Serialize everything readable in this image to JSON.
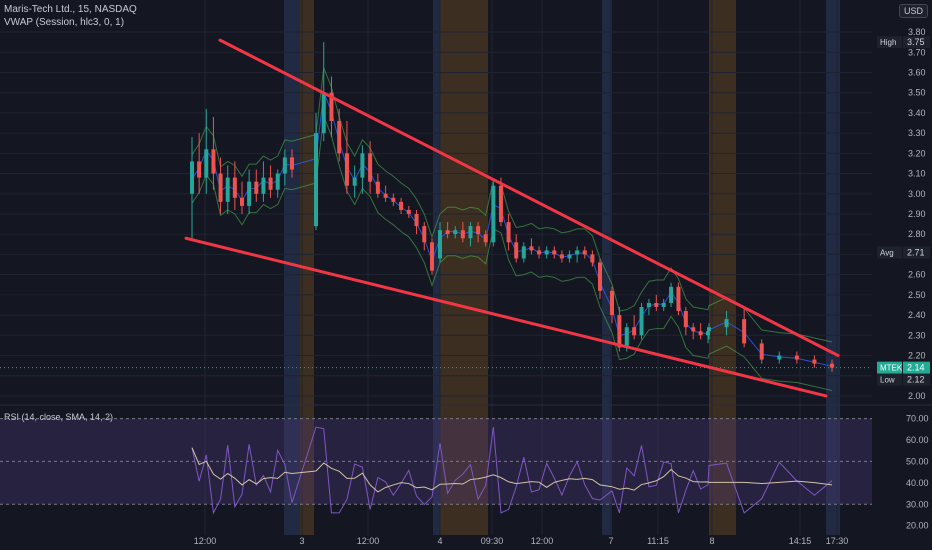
{
  "header": {
    "symbol": "Maris-Tech Ltd., 15, NASDAQ",
    "vwap_legend": "VWAP (Session, hlc3, 0, 1)",
    "rsi_legend": "RSI (14, close, SMA, 14, 2)",
    "currency": "USD"
  },
  "colors": {
    "background": "#141722",
    "up": "#26a69a",
    "down": "#ef5350",
    "trendline": "#f23645",
    "rsi_line": "#7e57c2",
    "rsi_ma": "#d1c4a8",
    "rsi_band": "#5b3f8c",
    "vwap": "#2962ff",
    "vwap_band": "#4caf50",
    "session_pre": "#2a3a5c",
    "session_post": "#5c4420"
  },
  "chart_data": {
    "type": "candlestick",
    "price_axis": {
      "ylim": [
        1.98,
        3.82
      ],
      "ticks": [
        "3.80",
        "3.70",
        "3.60",
        "3.50",
        "3.40",
        "3.30",
        "3.20",
        "3.10",
        "3.00",
        "2.90",
        "2.80",
        "2.70",
        "2.60",
        "2.50",
        "2.40",
        "2.30",
        "2.20",
        "2.10",
        "2.00"
      ]
    },
    "time_axis": {
      "ticks": [
        "12:00",
        "3",
        "12:00",
        "4",
        "09:30",
        "12:00",
        "7",
        "11:15",
        "8",
        "14:15",
        "17:30"
      ]
    },
    "price_labels": {
      "high": {
        "label": "High",
        "value": "3.75"
      },
      "avg": {
        "label": "Avg",
        "value": "2.71"
      },
      "last": {
        "label": "MTEK",
        "value": "2.14"
      },
      "low": {
        "label": "Low",
        "value": "2.12"
      }
    },
    "rsi_axis": {
      "ylim": [
        18,
        74
      ],
      "ticks": [
        "70.00",
        "60.00",
        "50.00",
        "40.00",
        "30.00",
        "20.00"
      ],
      "upper_band": 70,
      "lower_band": 30,
      "middle": 50
    },
    "candles": [
      [
        3.0,
        3.28,
        2.78,
        3.16
      ],
      [
        3.16,
        3.3,
        3.0,
        3.08
      ],
      [
        3.08,
        3.42,
        3.0,
        3.22
      ],
      [
        3.22,
        3.38,
        3.02,
        3.1
      ],
      [
        3.1,
        3.18,
        2.9,
        2.96
      ],
      [
        2.96,
        3.14,
        2.9,
        3.08
      ],
      [
        3.08,
        3.16,
        2.92,
        2.98
      ],
      [
        2.98,
        3.06,
        2.9,
        2.94
      ],
      [
        2.94,
        3.12,
        2.9,
        3.06
      ],
      [
        3.06,
        3.12,
        2.96,
        3.0
      ],
      [
        3.0,
        3.16,
        2.96,
        3.08
      ],
      [
        3.08,
        3.14,
        2.98,
        3.02
      ],
      [
        3.02,
        3.12,
        2.98,
        3.1
      ],
      [
        3.1,
        3.22,
        3.04,
        3.18
      ],
      [
        3.18,
        3.22,
        3.08,
        3.12
      ],
      [
        2.84,
        3.4,
        2.82,
        3.3
      ],
      [
        3.3,
        3.75,
        3.26,
        3.5
      ],
      [
        3.5,
        3.58,
        3.28,
        3.36
      ],
      [
        3.36,
        3.42,
        3.16,
        3.2
      ],
      [
        3.2,
        3.36,
        3.0,
        3.04
      ],
      [
        3.04,
        3.14,
        2.98,
        3.08
      ],
      [
        3.08,
        3.24,
        3.0,
        3.2
      ],
      [
        3.2,
        3.26,
        3.0,
        3.06
      ],
      [
        3.06,
        3.1,
        2.98,
        3.0
      ],
      [
        3.0,
        3.04,
        2.96,
        2.98
      ],
      [
        2.98,
        3.0,
        2.94,
        2.96
      ],
      [
        2.96,
        2.98,
        2.9,
        2.92
      ],
      [
        2.92,
        2.94,
        2.88,
        2.9
      ],
      [
        2.9,
        2.92,
        2.8,
        2.84
      ],
      [
        2.84,
        2.86,
        2.72,
        2.76
      ],
      [
        2.76,
        2.78,
        2.6,
        2.62
      ],
      [
        2.68,
        2.86,
        2.66,
        2.82
      ],
      [
        2.82,
        2.86,
        2.78,
        2.8
      ],
      [
        2.8,
        2.84,
        2.78,
        2.82
      ],
      [
        2.82,
        2.86,
        2.76,
        2.78
      ],
      [
        2.78,
        2.86,
        2.74,
        2.84
      ],
      [
        2.84,
        2.86,
        2.76,
        2.8
      ],
      [
        2.8,
        2.82,
        2.74,
        2.76
      ],
      [
        2.76,
        3.06,
        2.74,
        3.04
      ],
      [
        3.04,
        3.08,
        2.84,
        2.86
      ],
      [
        2.86,
        2.9,
        2.72,
        2.76
      ],
      [
        2.76,
        2.8,
        2.66,
        2.68
      ],
      [
        2.68,
        2.76,
        2.66,
        2.74
      ],
      [
        2.74,
        2.78,
        2.7,
        2.72
      ],
      [
        2.72,
        2.74,
        2.68,
        2.7
      ],
      [
        2.7,
        2.74,
        2.68,
        2.72
      ],
      [
        2.72,
        2.74,
        2.68,
        2.7
      ],
      [
        2.7,
        2.72,
        2.66,
        2.68
      ],
      [
        2.68,
        2.72,
        2.66,
        2.7
      ],
      [
        2.7,
        2.74,
        2.66,
        2.72
      ],
      [
        2.72,
        2.74,
        2.68,
        2.7
      ],
      [
        2.7,
        2.72,
        2.64,
        2.66
      ],
      [
        2.66,
        2.68,
        2.48,
        2.52
      ],
      [
        2.52,
        2.54,
        2.36,
        2.4
      ],
      [
        2.4,
        2.44,
        2.22,
        2.24
      ],
      [
        2.24,
        2.36,
        2.22,
        2.34
      ],
      [
        2.34,
        2.4,
        2.28,
        2.3
      ],
      [
        2.3,
        2.46,
        2.28,
        2.44
      ],
      [
        2.44,
        2.48,
        2.4,
        2.46
      ],
      [
        2.46,
        2.5,
        2.42,
        2.44
      ],
      [
        2.44,
        2.48,
        2.42,
        2.46
      ],
      [
        2.46,
        2.56,
        2.44,
        2.54
      ],
      [
        2.54,
        2.56,
        2.4,
        2.42
      ],
      [
        2.42,
        2.44,
        2.3,
        2.34
      ],
      [
        2.34,
        2.36,
        2.28,
        2.32
      ],
      [
        2.32,
        2.36,
        2.28,
        2.3
      ],
      [
        2.3,
        2.34,
        2.26,
        2.32
      ],
      [
        2.32,
        2.36,
        2.28,
        2.34
      ],
      [
        2.34,
        2.42,
        2.3,
        2.38
      ],
      [
        2.38,
        2.44,
        2.24,
        2.26
      ],
      [
        2.26,
        2.28,
        2.16,
        2.18
      ],
      [
        2.18,
        2.22,
        2.16,
        2.2
      ],
      [
        2.2,
        2.22,
        2.16,
        2.18
      ],
      [
        2.18,
        2.2,
        2.14,
        2.16
      ],
      [
        2.16,
        2.18,
        2.12,
        2.14
      ]
    ],
    "trendlines": [
      {
        "from": [
          3.76,
          0
        ],
        "to": [
          2.2,
          1
        ]
      },
      {
        "from": [
          2.78,
          0
        ],
        "to": [
          2.0,
          1
        ]
      }
    ]
  }
}
